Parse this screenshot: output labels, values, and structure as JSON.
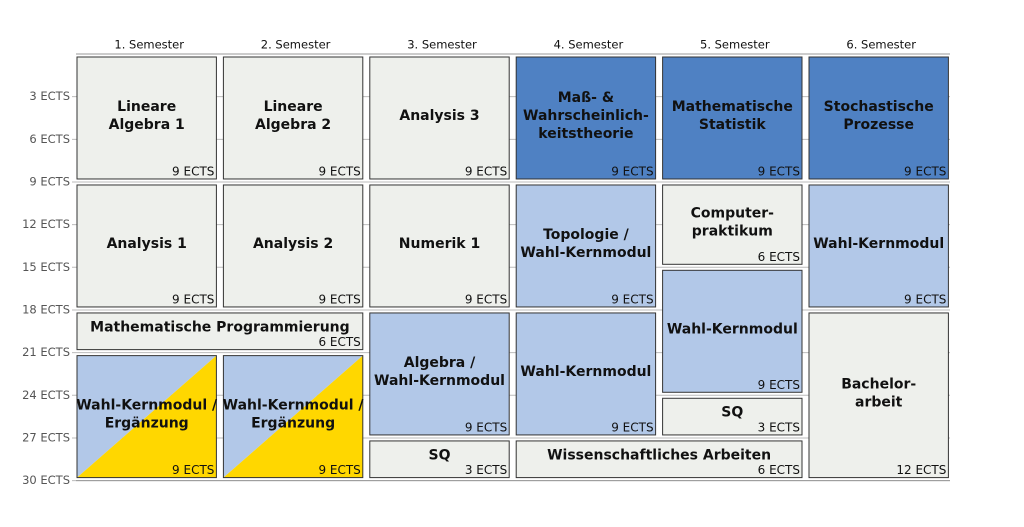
{
  "semesters": [
    "1. Semester",
    "2. Semester",
    "3. Semester",
    "4. Semester",
    "5. Semester",
    "6. Semester"
  ],
  "y_labels": [
    "3 ECTS",
    "6 ECTS",
    "9 ECTS",
    "12 ECTS",
    "15 ECTS",
    "18 ECTS",
    "21 ECTS",
    "24 ECTS",
    "27 ECTS",
    "30 ECTS"
  ],
  "modules": [
    {
      "title": [
        "Lineare",
        "Algebra 1"
      ],
      "ects": "9 ECTS"
    },
    {
      "title": [
        "Lineare",
        "Algebra 2"
      ],
      "ects": "9 ECTS"
    },
    {
      "title": [
        "Analysis 3"
      ],
      "ects": "9 ECTS"
    },
    {
      "title": [
        "Maß- &",
        "Wahrscheinlich-",
        "keitstheorie"
      ],
      "ects": "9 ECTS"
    },
    {
      "title": [
        "Mathematische",
        "Statistik"
      ],
      "ects": "9 ECTS"
    },
    {
      "title": [
        "Stochastische",
        "Prozesse"
      ],
      "ects": "9 ECTS"
    },
    {
      "title": [
        "Analysis 1"
      ],
      "ects": "9 ECTS"
    },
    {
      "title": [
        "Analysis 2"
      ],
      "ects": "9 ECTS"
    },
    {
      "title": [
        "Numerik 1"
      ],
      "ects": "9 ECTS"
    },
    {
      "title": [
        "Topologie /",
        "Wahl-Kernmodul"
      ],
      "ects": "9 ECTS"
    },
    {
      "title": [
        "Computer-",
        "praktikum"
      ],
      "ects": "6 ECTS"
    },
    {
      "title": [
        "Wahl-Kernmodul"
      ],
      "ects": "9 ECTS"
    },
    {
      "title": [
        "Mathematische Programmierung"
      ],
      "ects": "6 ECTS"
    },
    {
      "title": [
        "Wahl-Kernmodul"
      ],
      "ects": "9 ECTS"
    },
    {
      "title": [
        "Wahl-Kernmodul /",
        "Ergänzung"
      ],
      "ects": "9 ECTS"
    },
    {
      "title": [
        "Wahl-Kernmodul /",
        "Ergänzung"
      ],
      "ects": "9 ECTS"
    },
    {
      "title": [
        "Algebra /",
        "Wahl-Kernmodul"
      ],
      "ects": "9 ECTS"
    },
    {
      "title": [
        "Wahl-Kernmodul"
      ],
      "ects": "9 ECTS"
    },
    {
      "title": [
        "SQ"
      ],
      "ects": "3 ECTS"
    },
    {
      "title": [
        "Bachelor-",
        "arbeit"
      ],
      "ects": "12 ECTS"
    },
    {
      "title": [
        "SQ"
      ],
      "ects": "3 ECTS"
    },
    {
      "title": [
        "Wissenschaftliches Arbeiten"
      ],
      "ects": "6 ECTS"
    }
  ]
}
